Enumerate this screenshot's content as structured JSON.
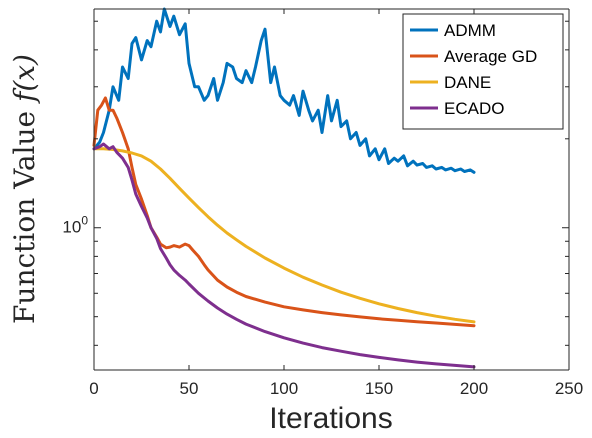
{
  "chart_data": {
    "type": "line",
    "title": "",
    "xlabel": "Iterations",
    "ylabel_text": "Function Value ",
    "ylabel_math": "f(x)",
    "yscale": "log",
    "xlim": [
      0,
      250
    ],
    "ylim": [
      0.33,
      5.5
    ],
    "x_ticks": [
      0,
      50,
      100,
      150,
      200,
      250
    ],
    "y_ticks": [
      {
        "value": 1,
        "base": "10",
        "exp": "0"
      }
    ],
    "grid": false,
    "legend_position": "top-right",
    "series": [
      {
        "name": "ADMM",
        "color": "#0072BD",
        "x": [
          0,
          3,
          5,
          8,
          10,
          13,
          15,
          18,
          20,
          22,
          25,
          28,
          30,
          33,
          35,
          37,
          40,
          42,
          45,
          48,
          50,
          53,
          55,
          58,
          60,
          63,
          65,
          68,
          70,
          73,
          75,
          78,
          80,
          83,
          85,
          88,
          90,
          93,
          95,
          98,
          100,
          103,
          105,
          108,
          110,
          113,
          115,
          118,
          120,
          123,
          125,
          128,
          130,
          133,
          135,
          138,
          140,
          143,
          145,
          148,
          150,
          153,
          155,
          158,
          160,
          163,
          165,
          168,
          170,
          173,
          175,
          178,
          180,
          183,
          185,
          188,
          190,
          193,
          195,
          198,
          200
        ],
        "values": [
          1.85,
          1.95,
          2.1,
          2.5,
          3.0,
          2.7,
          3.5,
          3.2,
          4.2,
          4.4,
          3.7,
          4.3,
          4.1,
          5.0,
          4.6,
          5.5,
          4.8,
          5.2,
          4.5,
          4.9,
          3.6,
          3.0,
          3.0,
          2.7,
          2.8,
          3.2,
          2.7,
          3.1,
          3.6,
          3.5,
          3.2,
          3.1,
          3.4,
          3.1,
          3.5,
          4.3,
          4.7,
          3.1,
          3.5,
          2.8,
          2.7,
          2.6,
          2.8,
          2.4,
          2.9,
          2.5,
          2.3,
          2.5,
          2.1,
          2.8,
          2.3,
          2.7,
          2.2,
          2.3,
          2.0,
          2.1,
          1.9,
          2.0,
          1.75,
          1.85,
          1.7,
          1.85,
          1.65,
          1.72,
          1.68,
          1.75,
          1.62,
          1.68,
          1.63,
          1.65,
          1.6,
          1.62,
          1.58,
          1.6,
          1.57,
          1.59,
          1.56,
          1.58,
          1.55,
          1.57,
          1.54
        ]
      },
      {
        "name": "Average GD",
        "color": "#D95319",
        "x": [
          0,
          2,
          4,
          6,
          8,
          10,
          12,
          15,
          18,
          20,
          22,
          25,
          28,
          30,
          33,
          35,
          38,
          40,
          42,
          45,
          48,
          50,
          52,
          55,
          58,
          60,
          65,
          70,
          75,
          80,
          90,
          100,
          110,
          120,
          130,
          140,
          150,
          160,
          170,
          180,
          190,
          200
        ],
        "values": [
          1.9,
          2.5,
          2.6,
          2.75,
          2.5,
          2.5,
          2.35,
          2.1,
          1.85,
          1.6,
          1.4,
          1.25,
          1.1,
          1.0,
          0.93,
          0.88,
          0.855,
          0.86,
          0.87,
          0.86,
          0.88,
          0.87,
          0.84,
          0.8,
          0.75,
          0.72,
          0.665,
          0.63,
          0.605,
          0.585,
          0.56,
          0.54,
          0.527,
          0.516,
          0.507,
          0.499,
          0.492,
          0.486,
          0.481,
          0.476,
          0.471,
          0.466
        ]
      },
      {
        "name": "DANE",
        "color": "#EDB120",
        "x": [
          0,
          5,
          10,
          15,
          20,
          25,
          30,
          35,
          40,
          45,
          50,
          55,
          60,
          65,
          70,
          75,
          80,
          90,
          100,
          110,
          120,
          130,
          140,
          150,
          160,
          170,
          180,
          190,
          200
        ],
        "values": [
          1.85,
          1.85,
          1.84,
          1.82,
          1.79,
          1.75,
          1.68,
          1.58,
          1.47,
          1.36,
          1.26,
          1.17,
          1.09,
          1.02,
          0.96,
          0.91,
          0.865,
          0.79,
          0.73,
          0.68,
          0.64,
          0.605,
          0.577,
          0.553,
          0.533,
          0.516,
          0.502,
          0.49,
          0.48
        ]
      },
      {
        "name": "ECADO",
        "color": "#7E2F8E",
        "x": [
          0,
          3,
          5,
          8,
          10,
          12,
          15,
          18,
          20,
          22,
          25,
          28,
          30,
          33,
          35,
          38,
          40,
          42,
          45,
          48,
          50,
          55,
          60,
          65,
          70,
          75,
          80,
          90,
          100,
          110,
          120,
          130,
          140,
          150,
          160,
          170,
          180,
          190,
          200
        ],
        "values": [
          1.85,
          1.88,
          1.92,
          1.85,
          1.88,
          1.8,
          1.72,
          1.6,
          1.45,
          1.3,
          1.18,
          1.08,
          1.0,
          0.92,
          0.85,
          0.79,
          0.75,
          0.72,
          0.69,
          0.665,
          0.645,
          0.6,
          0.565,
          0.535,
          0.51,
          0.49,
          0.472,
          0.445,
          0.424,
          0.407,
          0.393,
          0.382,
          0.372,
          0.364,
          0.357,
          0.351,
          0.346,
          0.342,
          0.338
        ]
      }
    ]
  }
}
